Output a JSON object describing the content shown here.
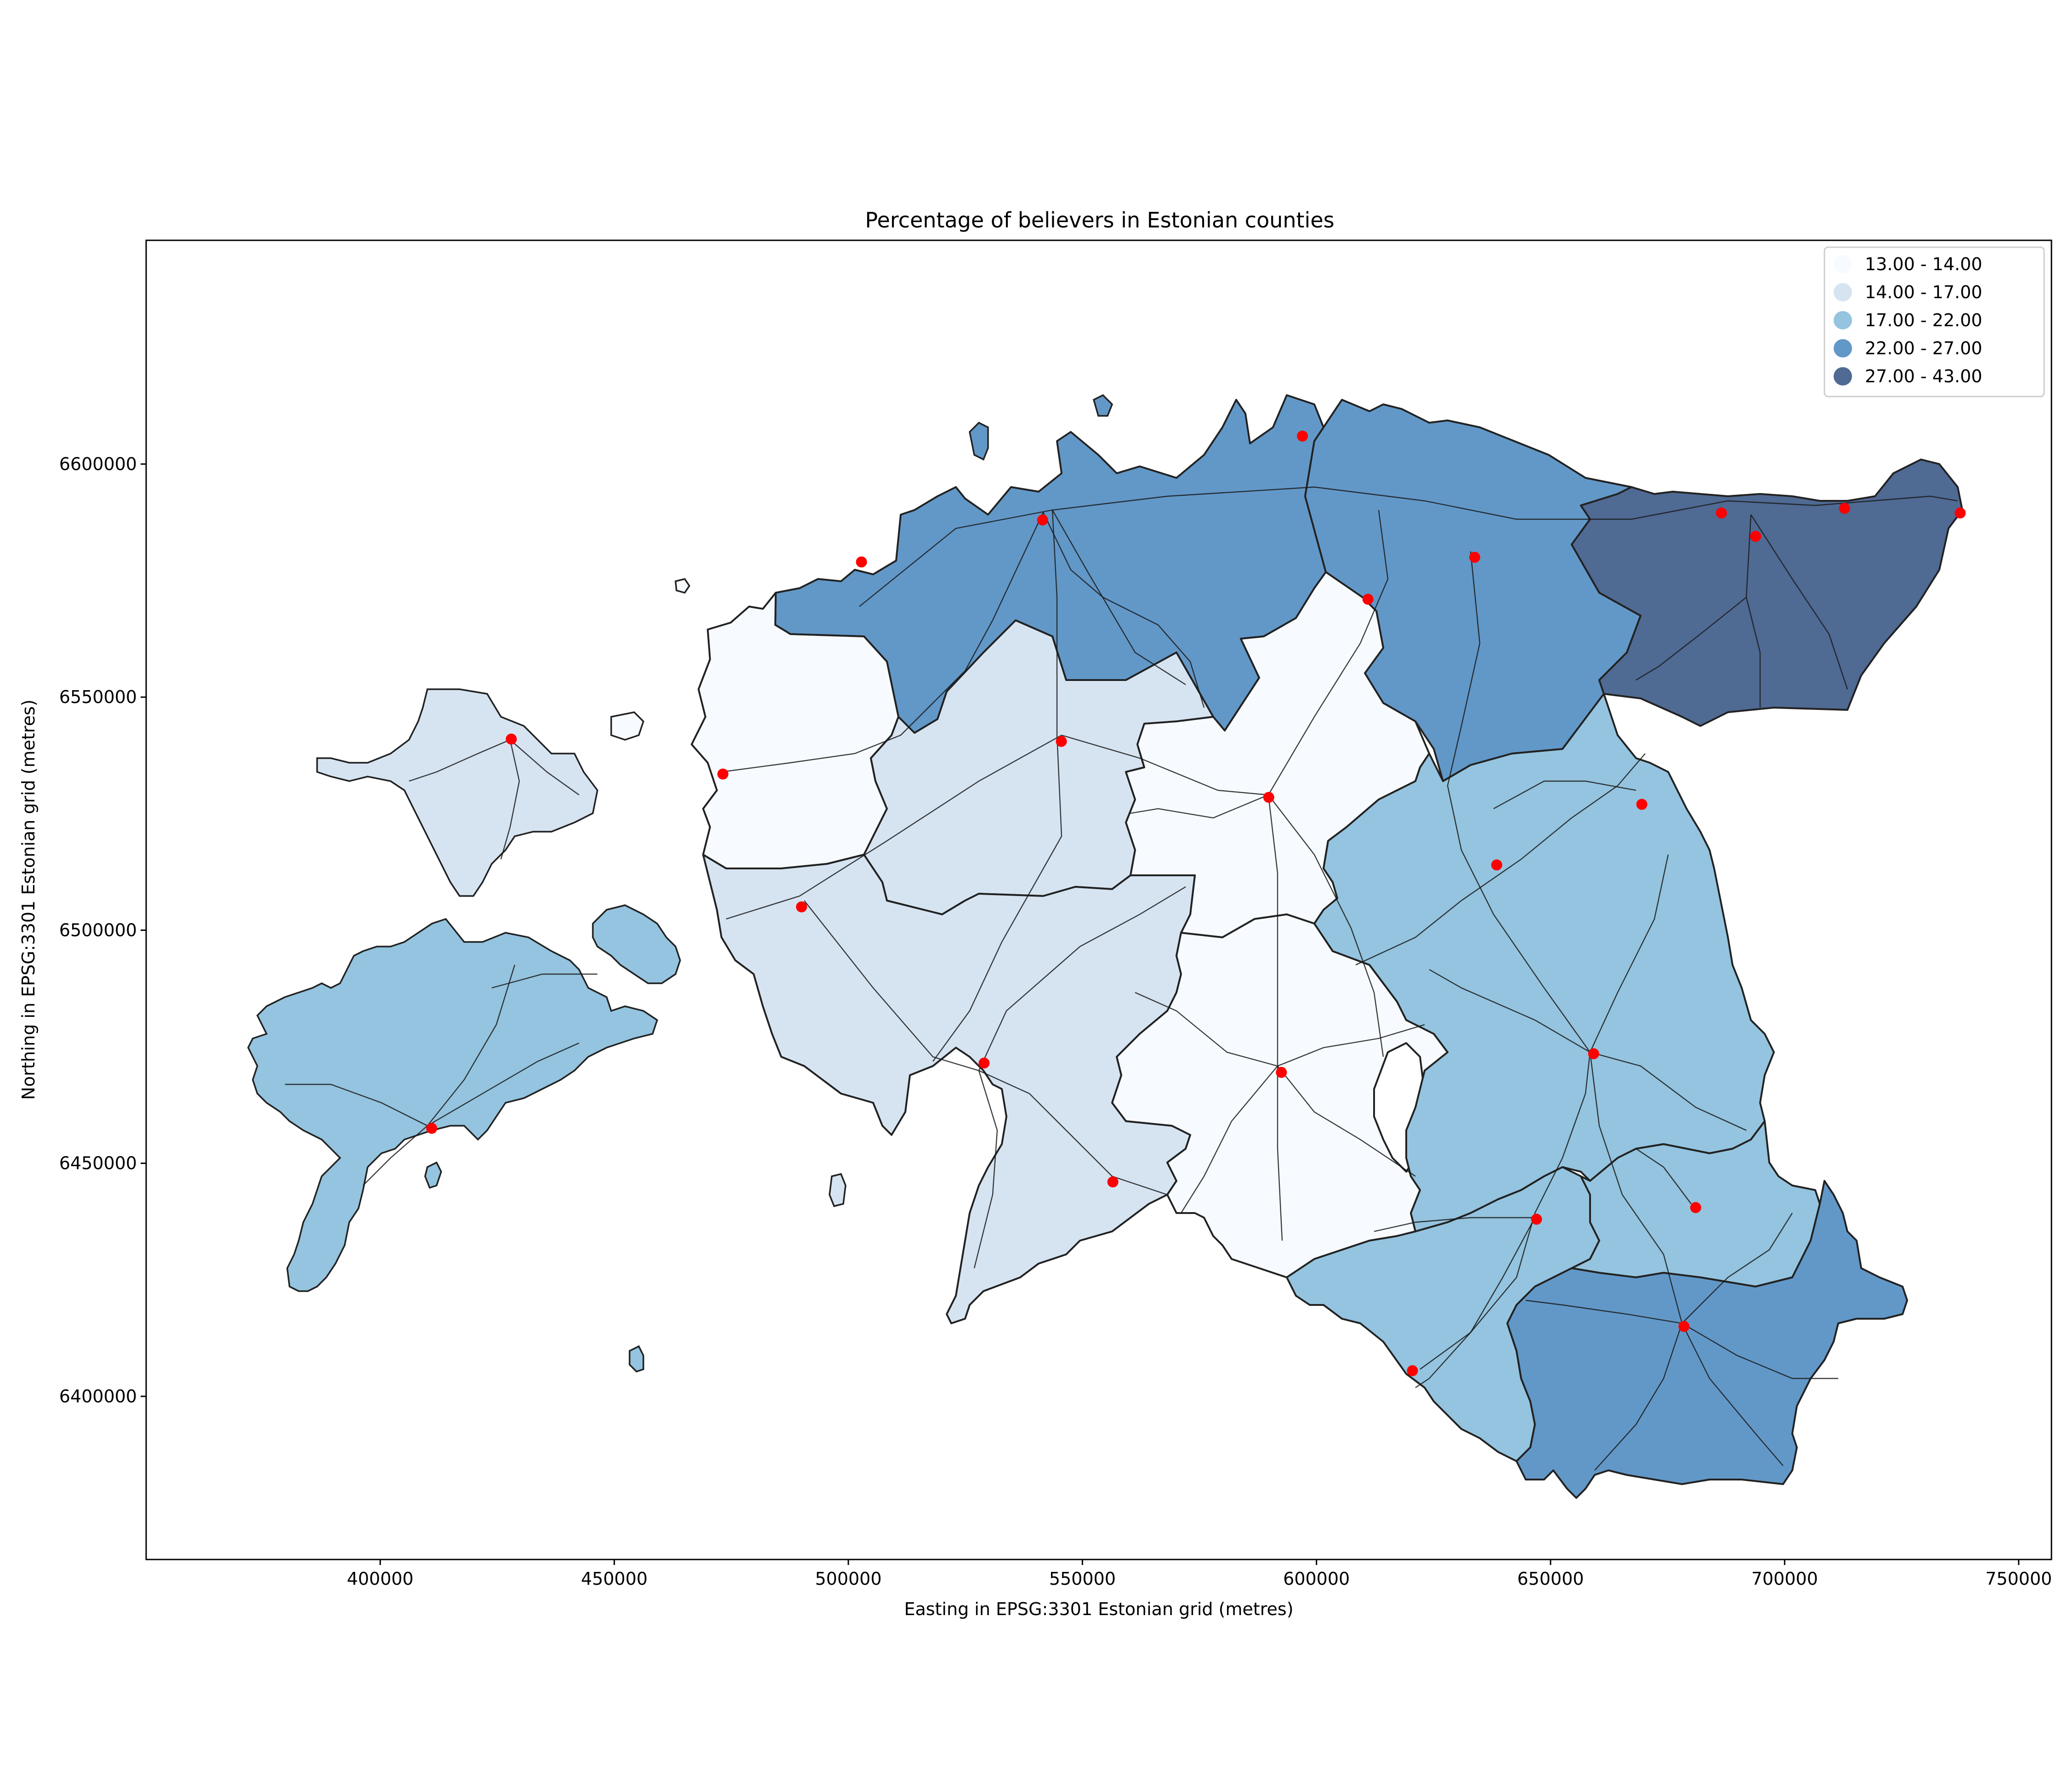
{
  "chart_data": {
    "type": "choropleth",
    "title": "Percentage of believers in Estonian counties",
    "xlabel": "Easting in EPSG:3301 Estonian grid (metres)",
    "ylabel": "Northing in EPSG:3301 Estonian grid (metres)",
    "xlim": [
      350000,
      757000
    ],
    "ylim": [
      6365000,
      6648000
    ],
    "x_ticks": [
      400000,
      450000,
      500000,
      550000,
      600000,
      650000,
      700000,
      750000
    ],
    "y_ticks": [
      6400000,
      6450000,
      6500000,
      6550000,
      6600000
    ],
    "x_tick_labels": [
      "400000",
      "450000",
      "500000",
      "550000",
      "600000",
      "650000",
      "700000",
      "750000"
    ],
    "y_tick_labels": [
      "6400000",
      "6450000",
      "6500000",
      "6550000",
      "6600000"
    ],
    "legend_position": "upper right",
    "legend": [
      {
        "label": "13.00 - 14.00",
        "color": "#f7fbff"
      },
      {
        "label": "14.00 - 17.00",
        "color": "#d6e4f2"
      },
      {
        "label": "17.00 - 22.00",
        "color": "#94c4df"
      },
      {
        "label": "22.00 - 27.00",
        "color": "#6298c8"
      },
      {
        "label": "27.00 - 43.00",
        "color": "#4f6a93"
      }
    ],
    "point_color": "#ff0000",
    "cities": [
      [
        597000,
        6606000
      ],
      [
        541500,
        6588000
      ],
      [
        502800,
        6579000
      ],
      [
        611000,
        6571000
      ],
      [
        633800,
        6580000
      ],
      [
        686500,
        6589500
      ],
      [
        693800,
        6584500
      ],
      [
        712800,
        6590500
      ],
      [
        737500,
        6589500
      ],
      [
        428000,
        6541000
      ],
      [
        545500,
        6540500
      ],
      [
        473200,
        6533500
      ],
      [
        589800,
        6528500
      ],
      [
        669500,
        6527000
      ],
      [
        638500,
        6514000
      ],
      [
        490000,
        6505000
      ],
      [
        659200,
        6473500
      ],
      [
        529000,
        6471500
      ],
      [
        592500,
        6469500
      ],
      [
        411000,
        6457500
      ],
      [
        556500,
        6446000
      ],
      [
        681000,
        6440500
      ],
      [
        647000,
        6438000
      ],
      [
        678500,
        6415000
      ],
      [
        620500,
        6405500
      ]
    ]
  }
}
